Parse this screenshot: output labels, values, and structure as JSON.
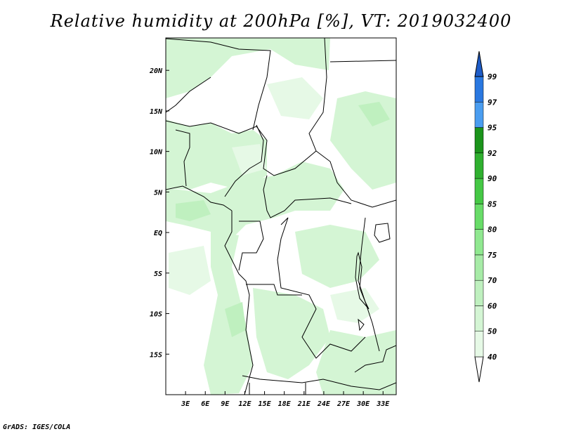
{
  "title": "Relative humidity at 200hPa [%], VT: 2019032400",
  "credit": "GrADS: IGES/COLA",
  "map": {
    "lon_range": [
      0,
      35
    ],
    "lat_range": [
      -20,
      24
    ],
    "x_ticks": [
      "3E",
      "6E",
      "9E",
      "12E",
      "15E",
      "18E",
      "21E",
      "24E",
      "27E",
      "30E",
      "33E"
    ],
    "y_ticks": [
      "20N",
      "15N",
      "10N",
      "5N",
      "EQ",
      "5S",
      "10S",
      "15S"
    ]
  },
  "legend": {
    "levels": [
      "40",
      "50",
      "60",
      "70",
      "75",
      "80",
      "85",
      "90",
      "92",
      "95",
      "97",
      "99"
    ],
    "colors": [
      "#ffffff",
      "#e6f9e6",
      "#d4f5d4",
      "#bff0bf",
      "#a7eba7",
      "#90e890",
      "#68dc68",
      "#45c845",
      "#2fb02f",
      "#1b941b",
      "#4a9df0",
      "#2a78e0",
      "#1e5cc8"
    ]
  }
}
